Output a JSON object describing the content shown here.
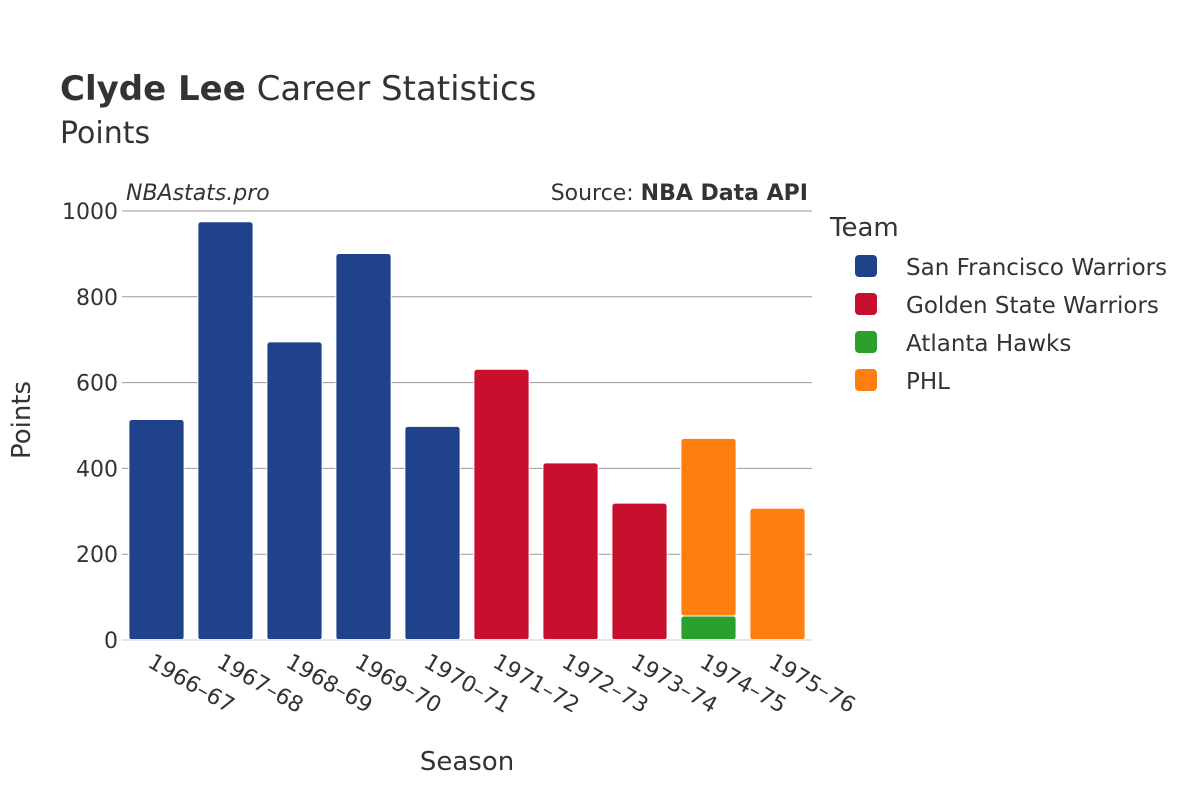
{
  "header": {
    "title_bold": "Clyde Lee",
    "title_rest": " Career Statistics",
    "subtitle": "Points"
  },
  "watermark": "NBAstats.pro",
  "source": {
    "prefix": "Source: ",
    "name": "NBA Data API"
  },
  "chart_data": {
    "type": "bar",
    "stacked": true,
    "xlabel": "Season",
    "ylabel": "Points",
    "ylim": [
      0,
      1000
    ],
    "yticks": [
      0,
      200,
      400,
      600,
      800,
      1000
    ],
    "grid": true,
    "legend_title": "Team",
    "legend_position": "right",
    "categories": [
      "1966–67",
      "1967–68",
      "1968–69",
      "1969–70",
      "1970–71",
      "1971–72",
      "1972–73",
      "1973–74",
      "1974–75",
      "1975–76"
    ],
    "series": [
      {
        "name": "San Francisco Warriors",
        "color": "#1f428a",
        "values": [
          514,
          975,
          695,
          901,
          498,
          0,
          0,
          0,
          0,
          0
        ]
      },
      {
        "name": "Golden State Warriors",
        "color": "#c8102e",
        "values": [
          0,
          0,
          0,
          0,
          0,
          631,
          413,
          319,
          0,
          0
        ]
      },
      {
        "name": "Atlanta Hawks",
        "color": "#2ca02c",
        "values": [
          0,
          0,
          0,
          0,
          0,
          0,
          0,
          0,
          56,
          0
        ]
      },
      {
        "name": "PHL",
        "color": "#ff7f0e",
        "values": [
          0,
          0,
          0,
          0,
          0,
          0,
          0,
          0,
          414,
          307
        ]
      }
    ]
  }
}
